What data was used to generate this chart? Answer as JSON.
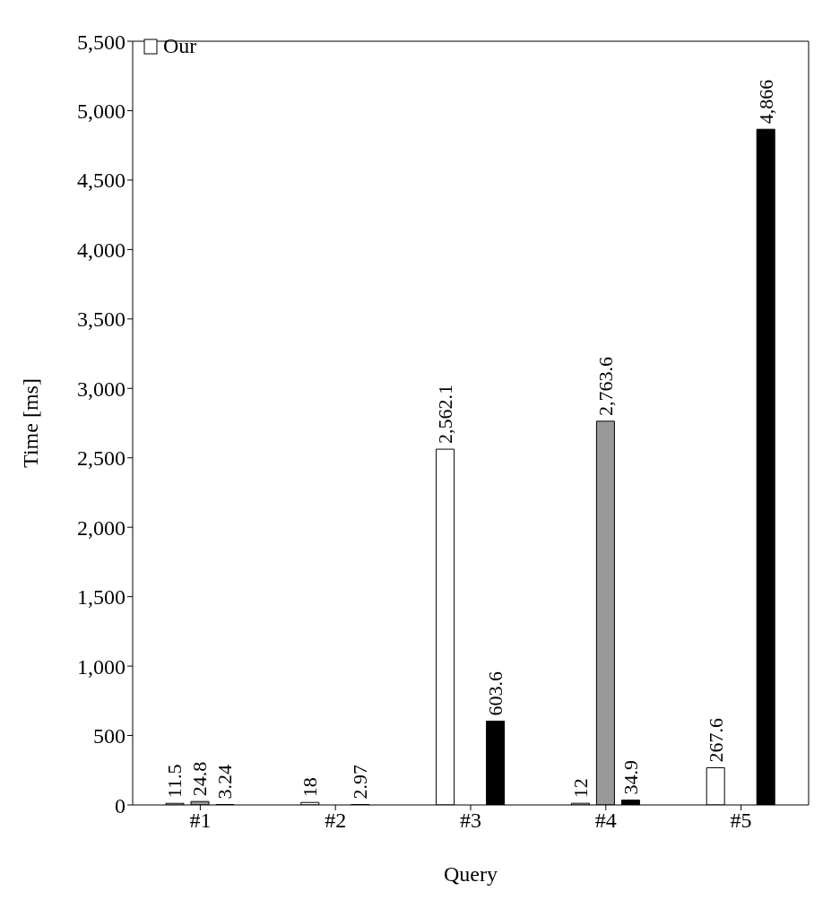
{
  "chart_data": {
    "type": "bar",
    "xlabel": "Query",
    "ylabel": "Time [ms]",
    "categories": [
      "#1",
      "#2",
      "#3",
      "#4",
      "#5"
    ],
    "series": [
      {
        "name": "Our",
        "color": "#ffffff",
        "values": [
          11.5,
          18,
          2562.1,
          12,
          267.6
        ],
        "value_labels": [
          "11.5",
          "18",
          "2,562.1",
          "12",
          "267.6"
        ]
      },
      {
        "color": "#999999",
        "values": [
          24.8,
          null,
          null,
          2763.6,
          null
        ],
        "value_labels": [
          "24.8",
          null,
          null,
          "2,763.6",
          null
        ]
      },
      {
        "color": "#000000",
        "values": [
          3.24,
          2.97,
          603.6,
          34.9,
          4866
        ],
        "value_labels": [
          "3.24",
          "2.97",
          "603.6",
          "34.9",
          "4,866"
        ]
      }
    ],
    "ylim": [
      0,
      5500
    ],
    "yticks": [
      0,
      500,
      {
        "value": 1000,
        "label": "1,000"
      },
      {
        "value": 1500,
        "label": "1,500"
      },
      {
        "value": 2000,
        "label": "2,000"
      },
      {
        "value": 2500,
        "label": "2,500"
      },
      {
        "value": 3000,
        "label": "3,000"
      },
      {
        "value": 3500,
        "label": "3,500"
      },
      {
        "value": 4000,
        "label": "4,000"
      },
      {
        "value": 4500,
        "label": "4,500"
      },
      {
        "value": 5000,
        "label": "5,000"
      },
      {
        "value": 5500,
        "label": "5,500"
      }
    ],
    "grid": false,
    "legend": "top left"
  }
}
